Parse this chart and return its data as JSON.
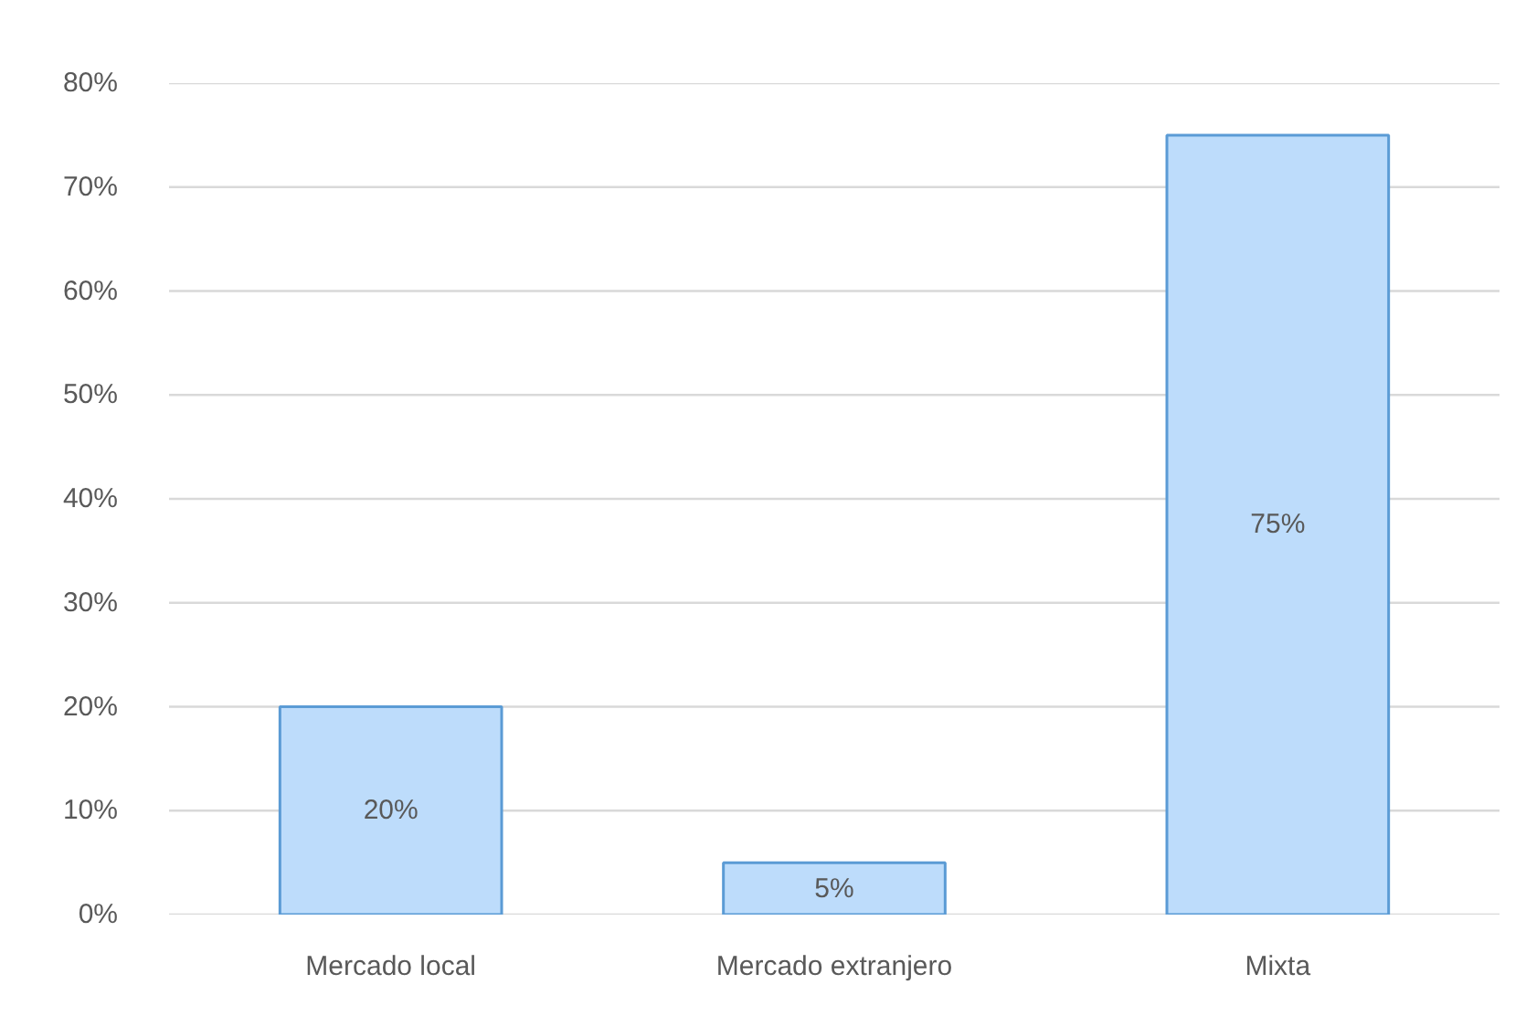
{
  "chart_data": {
    "type": "bar",
    "categories": [
      "Mercado local",
      "Mercado extranjero",
      "Mixta"
    ],
    "values": [
      20,
      5,
      75
    ],
    "color": "#bddcfb",
    "ylim": [
      0,
      80
    ],
    "yticks": [
      {
        "value": 0,
        "label": "0%"
      },
      {
        "value": 10,
        "label": "10%"
      },
      {
        "value": 20,
        "label": "20%"
      },
      {
        "value": 30,
        "label": "30%"
      },
      {
        "value": 40,
        "label": "40%"
      },
      {
        "value": 50,
        "label": "50%"
      },
      {
        "value": 60,
        "label": "60%"
      },
      {
        "value": 70,
        "label": "70%"
      },
      {
        "value": 80,
        "label": "80%"
      }
    ],
    "grid": "y",
    "value_labels": [
      "20%",
      "5%",
      "75%"
    ]
  }
}
